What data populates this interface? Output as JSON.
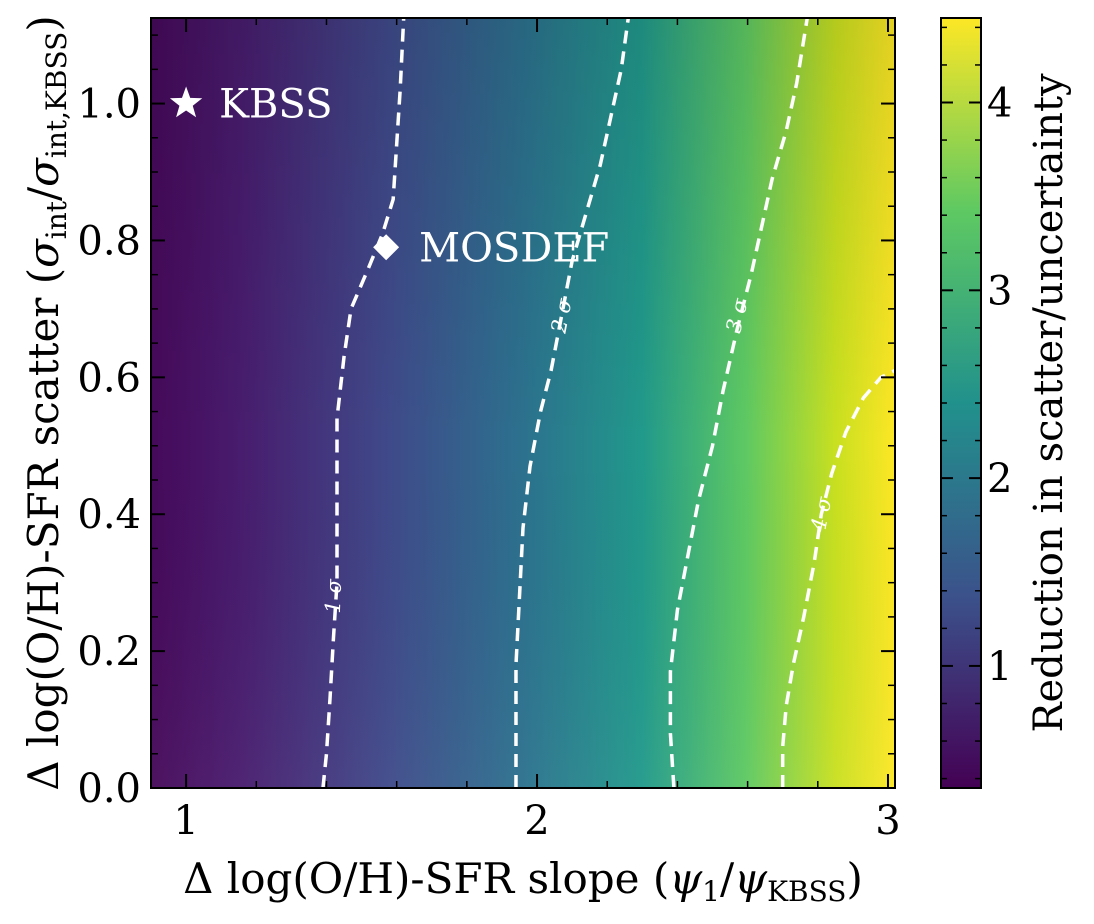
{
  "chart_data": {
    "type": "heatmap",
    "xlabel_parts": {
      "main": "Δ log(O/H)-SFR slope (",
      "sym": "ψ",
      "sub1": "1",
      "slash": "/",
      "sym2": "ψ",
      "sub2": "KBSS",
      "close": ")"
    },
    "ylabel_parts": {
      "main": "Δ log(O/H)-SFR scatter (",
      "sym": "σ",
      "sub1": "int",
      "slash": "/",
      "sym2": "σ",
      "sub2": "int,KBSS",
      "close": ")"
    },
    "colorbar_label": "Reduction in scatter/uncertainty",
    "xlim": [
      0.9,
      3.02
    ],
    "ylim": [
      0.0,
      1.125
    ],
    "x_ticks": [
      1,
      2,
      3
    ],
    "x_tick_labels": [
      "1",
      "2",
      "3"
    ],
    "y_ticks": [
      0.0,
      0.2,
      0.4,
      0.6,
      0.8,
      1.0
    ],
    "y_tick_labels": [
      "0.0",
      "0.2",
      "0.4",
      "0.6",
      "0.8",
      "1.0"
    ],
    "colorbar_range": [
      0.35,
      4.45
    ],
    "colorbar_ticks": [
      1,
      2,
      3,
      4
    ],
    "colorbar_tick_labels": [
      "1",
      "2",
      "3",
      "4"
    ],
    "colormap": "viridis",
    "colormap_stops": [
      "#440154",
      "#3b528b",
      "#21918c",
      "#5ec962",
      "#fde725"
    ],
    "grid": false,
    "points": [
      {
        "name": "KBSS",
        "label": "KBSS",
        "x": 1.0,
        "y": 1.0,
        "marker": "star",
        "color": "#ffffff"
      },
      {
        "name": "MOSDEF",
        "label": "MOSDEF",
        "x": 1.57,
        "y": 0.79,
        "marker": "diamond",
        "color": "#ffffff"
      }
    ],
    "contours": [
      {
        "level_label": "1 σ",
        "style": "dashed",
        "color": "#ffffff",
        "label_at": {
          "x": 1.42,
          "y": 0.28
        },
        "points": [
          [
            1.39,
            0.0
          ],
          [
            1.4,
            0.05
          ],
          [
            1.41,
            0.13
          ],
          [
            1.42,
            0.22
          ],
          [
            1.43,
            0.3
          ],
          [
            1.43,
            0.38
          ],
          [
            1.43,
            0.46
          ],
          [
            1.43,
            0.54
          ],
          [
            1.45,
            0.63
          ],
          [
            1.47,
            0.7
          ],
          [
            1.52,
            0.76
          ],
          [
            1.56,
            0.81
          ],
          [
            1.59,
            0.86
          ],
          [
            1.6,
            0.94
          ],
          [
            1.61,
            1.02
          ],
          [
            1.62,
            1.125
          ]
        ]
      },
      {
        "level_label": "2 σ",
        "style": "dashed",
        "color": "#ffffff",
        "label_at": {
          "x": 2.07,
          "y": 0.69
        },
        "points": [
          [
            1.94,
            0.0
          ],
          [
            1.94,
            0.08
          ],
          [
            1.94,
            0.18
          ],
          [
            1.95,
            0.28
          ],
          [
            1.96,
            0.38
          ],
          [
            1.98,
            0.47
          ],
          [
            2.01,
            0.55
          ],
          [
            2.04,
            0.61
          ],
          [
            2.07,
            0.69
          ],
          [
            2.1,
            0.77
          ],
          [
            2.14,
            0.84
          ],
          [
            2.18,
            0.91
          ],
          [
            2.21,
            0.98
          ],
          [
            2.24,
            1.05
          ],
          [
            2.26,
            1.125
          ]
        ]
      },
      {
        "level_label": "3 σ",
        "style": "dashed",
        "color": "#ffffff",
        "label_at": {
          "x": 2.57,
          "y": 0.69
        },
        "points": [
          [
            2.39,
            0.0
          ],
          [
            2.38,
            0.08
          ],
          [
            2.38,
            0.17
          ],
          [
            2.4,
            0.26
          ],
          [
            2.43,
            0.34
          ],
          [
            2.46,
            0.42
          ],
          [
            2.5,
            0.5
          ],
          [
            2.53,
            0.58
          ],
          [
            2.57,
            0.67
          ],
          [
            2.61,
            0.75
          ],
          [
            2.64,
            0.82
          ],
          [
            2.67,
            0.89
          ],
          [
            2.71,
            0.96
          ],
          [
            2.74,
            1.03
          ],
          [
            2.77,
            1.125
          ]
        ]
      },
      {
        "level_label": "4 σ",
        "style": "dashed",
        "color": "#ffffff",
        "label_at": {
          "x": 2.81,
          "y": 0.4
        },
        "points": [
          [
            2.7,
            0.0
          ],
          [
            2.7,
            0.06
          ],
          [
            2.71,
            0.12
          ],
          [
            2.73,
            0.18
          ],
          [
            2.76,
            0.25
          ],
          [
            2.79,
            0.33
          ],
          [
            2.81,
            0.4
          ],
          [
            2.84,
            0.46
          ],
          [
            2.88,
            0.52
          ],
          [
            2.93,
            0.57
          ],
          [
            2.98,
            0.6
          ],
          [
            3.02,
            0.61
          ]
        ]
      }
    ]
  }
}
